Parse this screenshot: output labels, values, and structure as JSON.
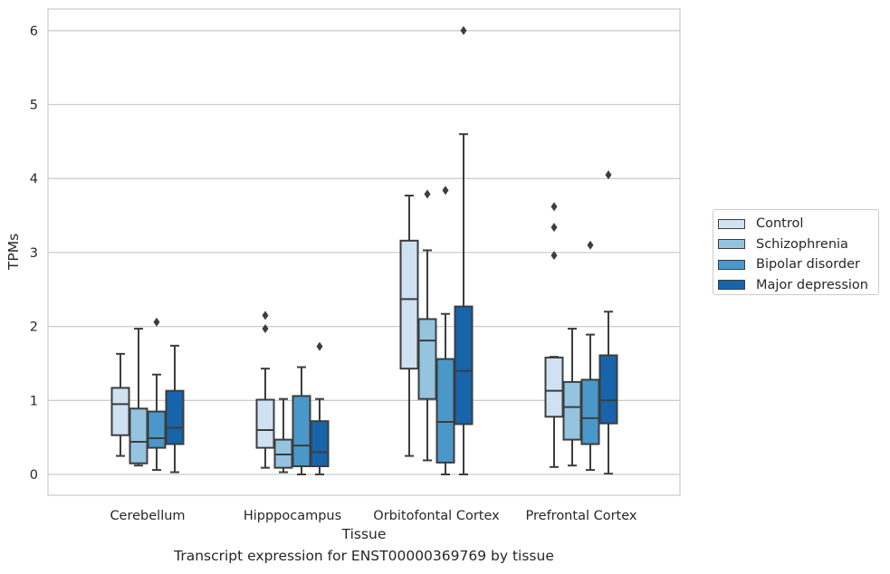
{
  "chart_data": {
    "type": "box",
    "xlabel": "Tissue",
    "ylabel": "TPMs",
    "ylim": [
      -0.3,
      6.3
    ],
    "yticks": [
      0,
      1,
      2,
      3,
      4,
      5,
      6
    ],
    "grid": true,
    "legend_position": "right",
    "categories": [
      "Cerebellum",
      "Hipppocampus",
      "Orbitofontal Cortex",
      "Prefrontal Cortex"
    ],
    "series": [
      {
        "name": "Control",
        "color": "#d0e1f2",
        "boxes": [
          {
            "min": 0.25,
            "q1": 0.53,
            "median": 0.95,
            "q3": 1.17,
            "max": 1.63,
            "outliers": []
          },
          {
            "min": 0.09,
            "q1": 0.36,
            "median": 0.6,
            "q3": 1.01,
            "max": 1.43,
            "outliers": [
              1.97,
              2.15
            ]
          },
          {
            "min": 0.25,
            "q1": 1.43,
            "median": 2.37,
            "q3": 3.16,
            "max": 3.77,
            "outliers": []
          },
          {
            "min": 0.1,
            "q1": 0.78,
            "median": 1.13,
            "q3": 1.58,
            "max": 1.59,
            "outliers": [
              2.96,
              3.34,
              3.62
            ]
          }
        ]
      },
      {
        "name": "Schizophrenia",
        "color": "#94c4df",
        "boxes": [
          {
            "min": 0.12,
            "q1": 0.15,
            "median": 0.44,
            "q3": 0.89,
            "max": 1.97,
            "outliers": []
          },
          {
            "min": 0.03,
            "q1": 0.09,
            "median": 0.27,
            "q3": 0.47,
            "max": 1.02,
            "outliers": []
          },
          {
            "min": 0.19,
            "q1": 1.02,
            "median": 1.81,
            "q3": 2.1,
            "max": 3.03,
            "outliers": [
              3.79
            ]
          },
          {
            "min": 0.12,
            "q1": 0.47,
            "median": 0.91,
            "q3": 1.25,
            "max": 1.97,
            "outliers": []
          }
        ]
      },
      {
        "name": "Bipolar disorder",
        "color": "#4a98c9",
        "boxes": [
          {
            "min": 0.06,
            "q1": 0.36,
            "median": 0.49,
            "q3": 0.85,
            "max": 1.35,
            "outliers": [
              2.06
            ]
          },
          {
            "min": 0.0,
            "q1": 0.11,
            "median": 0.39,
            "q3": 1.06,
            "max": 1.45,
            "outliers": []
          },
          {
            "min": 0.0,
            "q1": 0.16,
            "median": 0.71,
            "q3": 1.56,
            "max": 2.17,
            "outliers": [
              3.84
            ]
          },
          {
            "min": 0.06,
            "q1": 0.41,
            "median": 0.76,
            "q3": 1.28,
            "max": 1.89,
            "outliers": [
              3.1
            ]
          }
        ]
      },
      {
        "name": "Major depression",
        "color": "#1764ab",
        "boxes": [
          {
            "min": 0.03,
            "q1": 0.41,
            "median": 0.63,
            "q3": 1.13,
            "max": 1.74,
            "outliers": []
          },
          {
            "min": 0.0,
            "q1": 0.11,
            "median": 0.3,
            "q3": 0.72,
            "max": 1.02,
            "outliers": [
              1.73
            ]
          },
          {
            "min": 0.0,
            "q1": 0.68,
            "median": 1.4,
            "q3": 2.27,
            "max": 4.6,
            "outliers": [
              6.0
            ]
          },
          {
            "min": 0.01,
            "q1": 0.69,
            "median": 1.0,
            "q3": 1.61,
            "max": 2.2,
            "outliers": [
              4.05
            ]
          }
        ]
      }
    ]
  },
  "caption": "Transcript expression for ENST00000369769 by tissue"
}
